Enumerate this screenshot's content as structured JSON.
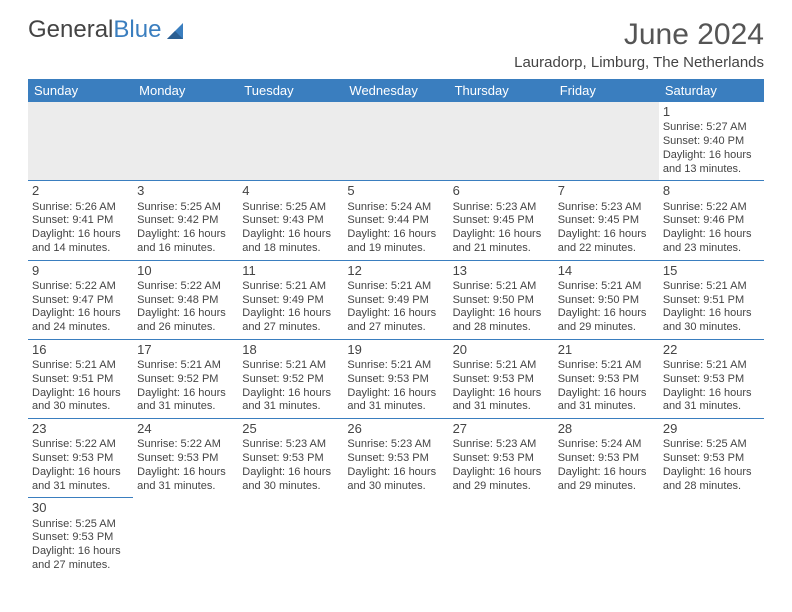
{
  "logo": {
    "first": "General",
    "second": "Blue"
  },
  "title": "June 2024",
  "location": "Lauradorp, Limburg, The Netherlands",
  "colors": {
    "header_bg": "#3a7ebf",
    "header_text": "#ffffff",
    "grid_line": "#3a7ebf",
    "text": "#444444",
    "blank_row_bg": "#ececec"
  },
  "day_headers": [
    "Sunday",
    "Monday",
    "Tuesday",
    "Wednesday",
    "Thursday",
    "Friday",
    "Saturday"
  ],
  "weeks": [
    [
      null,
      null,
      null,
      null,
      null,
      null,
      {
        "n": "1",
        "sr": "5:27 AM",
        "ss": "9:40 PM",
        "dl1": "16 hours",
        "dl2": "and 13 minutes."
      }
    ],
    [
      {
        "n": "2",
        "sr": "5:26 AM",
        "ss": "9:41 PM",
        "dl1": "16 hours",
        "dl2": "and 14 minutes."
      },
      {
        "n": "3",
        "sr": "5:25 AM",
        "ss": "9:42 PM",
        "dl1": "16 hours",
        "dl2": "and 16 minutes."
      },
      {
        "n": "4",
        "sr": "5:25 AM",
        "ss": "9:43 PM",
        "dl1": "16 hours",
        "dl2": "and 18 minutes."
      },
      {
        "n": "5",
        "sr": "5:24 AM",
        "ss": "9:44 PM",
        "dl1": "16 hours",
        "dl2": "and 19 minutes."
      },
      {
        "n": "6",
        "sr": "5:23 AM",
        "ss": "9:45 PM",
        "dl1": "16 hours",
        "dl2": "and 21 minutes."
      },
      {
        "n": "7",
        "sr": "5:23 AM",
        "ss": "9:45 PM",
        "dl1": "16 hours",
        "dl2": "and 22 minutes."
      },
      {
        "n": "8",
        "sr": "5:22 AM",
        "ss": "9:46 PM",
        "dl1": "16 hours",
        "dl2": "and 23 minutes."
      }
    ],
    [
      {
        "n": "9",
        "sr": "5:22 AM",
        "ss": "9:47 PM",
        "dl1": "16 hours",
        "dl2": "and 24 minutes."
      },
      {
        "n": "10",
        "sr": "5:22 AM",
        "ss": "9:48 PM",
        "dl1": "16 hours",
        "dl2": "and 26 minutes."
      },
      {
        "n": "11",
        "sr": "5:21 AM",
        "ss": "9:49 PM",
        "dl1": "16 hours",
        "dl2": "and 27 minutes."
      },
      {
        "n": "12",
        "sr": "5:21 AM",
        "ss": "9:49 PM",
        "dl1": "16 hours",
        "dl2": "and 27 minutes."
      },
      {
        "n": "13",
        "sr": "5:21 AM",
        "ss": "9:50 PM",
        "dl1": "16 hours",
        "dl2": "and 28 minutes."
      },
      {
        "n": "14",
        "sr": "5:21 AM",
        "ss": "9:50 PM",
        "dl1": "16 hours",
        "dl2": "and 29 minutes."
      },
      {
        "n": "15",
        "sr": "5:21 AM",
        "ss": "9:51 PM",
        "dl1": "16 hours",
        "dl2": "and 30 minutes."
      }
    ],
    [
      {
        "n": "16",
        "sr": "5:21 AM",
        "ss": "9:51 PM",
        "dl1": "16 hours",
        "dl2": "and 30 minutes."
      },
      {
        "n": "17",
        "sr": "5:21 AM",
        "ss": "9:52 PM",
        "dl1": "16 hours",
        "dl2": "and 31 minutes."
      },
      {
        "n": "18",
        "sr": "5:21 AM",
        "ss": "9:52 PM",
        "dl1": "16 hours",
        "dl2": "and 31 minutes."
      },
      {
        "n": "19",
        "sr": "5:21 AM",
        "ss": "9:53 PM",
        "dl1": "16 hours",
        "dl2": "and 31 minutes."
      },
      {
        "n": "20",
        "sr": "5:21 AM",
        "ss": "9:53 PM",
        "dl1": "16 hours",
        "dl2": "and 31 minutes."
      },
      {
        "n": "21",
        "sr": "5:21 AM",
        "ss": "9:53 PM",
        "dl1": "16 hours",
        "dl2": "and 31 minutes."
      },
      {
        "n": "22",
        "sr": "5:21 AM",
        "ss": "9:53 PM",
        "dl1": "16 hours",
        "dl2": "and 31 minutes."
      }
    ],
    [
      {
        "n": "23",
        "sr": "5:22 AM",
        "ss": "9:53 PM",
        "dl1": "16 hours",
        "dl2": "and 31 minutes."
      },
      {
        "n": "24",
        "sr": "5:22 AM",
        "ss": "9:53 PM",
        "dl1": "16 hours",
        "dl2": "and 31 minutes."
      },
      {
        "n": "25",
        "sr": "5:23 AM",
        "ss": "9:53 PM",
        "dl1": "16 hours",
        "dl2": "and 30 minutes."
      },
      {
        "n": "26",
        "sr": "5:23 AM",
        "ss": "9:53 PM",
        "dl1": "16 hours",
        "dl2": "and 30 minutes."
      },
      {
        "n": "27",
        "sr": "5:23 AM",
        "ss": "9:53 PM",
        "dl1": "16 hours",
        "dl2": "and 29 minutes."
      },
      {
        "n": "28",
        "sr": "5:24 AM",
        "ss": "9:53 PM",
        "dl1": "16 hours",
        "dl2": "and 29 minutes."
      },
      {
        "n": "29",
        "sr": "5:25 AM",
        "ss": "9:53 PM",
        "dl1": "16 hours",
        "dl2": "and 28 minutes."
      }
    ],
    [
      {
        "n": "30",
        "sr": "5:25 AM",
        "ss": "9:53 PM",
        "dl1": "16 hours",
        "dl2": "and 27 minutes."
      },
      null,
      null,
      null,
      null,
      null,
      null
    ]
  ],
  "labels": {
    "sunrise_prefix": "Sunrise: ",
    "sunset_prefix": "Sunset: ",
    "daylight_prefix": "Daylight: "
  }
}
